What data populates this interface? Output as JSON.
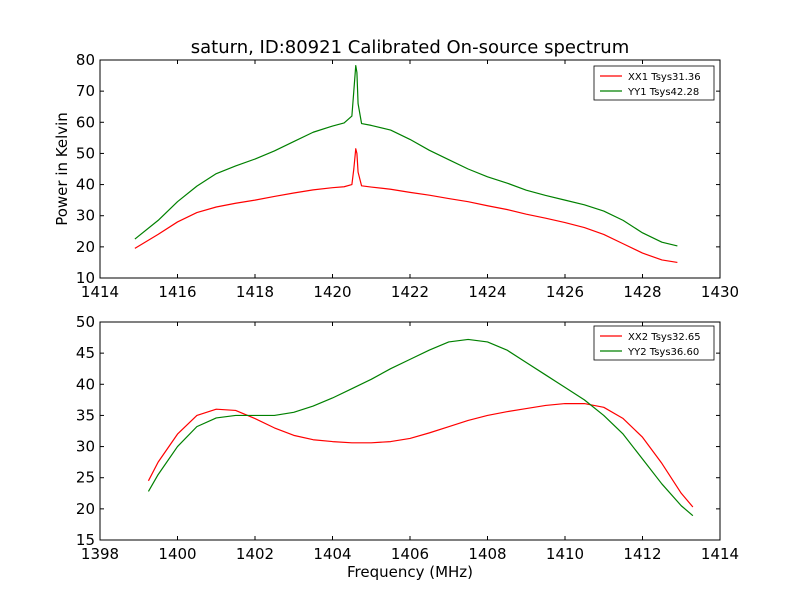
{
  "figure": {
    "title": "saturn, ID:80921 Calibrated On-source spectrum",
    "ylabel": "Power in Kelvin",
    "xlabel": "Frequency (MHz)"
  },
  "colors": {
    "red": "#ff0000",
    "green": "#008000"
  },
  "chart_data": [
    {
      "type": "line",
      "xlim": [
        1414,
        1430
      ],
      "ylim": [
        10,
        80
      ],
      "xticks": [
        "1414",
        "1416",
        "1418",
        "1420",
        "1422",
        "1424",
        "1426",
        "1428",
        "1430"
      ],
      "yticks": [
        "10",
        "20",
        "30",
        "40",
        "50",
        "60",
        "70",
        "80"
      ],
      "legend_position": "upper right",
      "series": [
        {
          "name": "XX1 Tsys31.36",
          "color": "#ff0000",
          "x": [
            1414.9,
            1415.5,
            1416.0,
            1416.5,
            1417.0,
            1417.5,
            1418.0,
            1418.5,
            1419.0,
            1419.5,
            1420.0,
            1420.3,
            1420.5,
            1420.55,
            1420.6,
            1420.63,
            1420.66,
            1420.75,
            1421.0,
            1421.5,
            1422.0,
            1422.5,
            1423.0,
            1423.5,
            1424.0,
            1424.5,
            1425.0,
            1425.5,
            1426.0,
            1426.5,
            1427.0,
            1427.5,
            1428.0,
            1428.5,
            1428.9
          ],
          "y": [
            19.5,
            24.0,
            28.0,
            31.0,
            32.8,
            34.0,
            35.0,
            36.2,
            37.3,
            38.3,
            39.0,
            39.3,
            40.0,
            45.0,
            51.5,
            50.0,
            44.0,
            39.6,
            39.2,
            38.5,
            37.5,
            36.6,
            35.5,
            34.5,
            33.2,
            32.0,
            30.5,
            29.2,
            27.8,
            26.2,
            24.0,
            21.0,
            18.0,
            15.8,
            15.0
          ]
        },
        {
          "name": "YY1 Tsys42.28",
          "color": "#008000",
          "x": [
            1414.9,
            1415.5,
            1416.0,
            1416.5,
            1417.0,
            1417.5,
            1418.0,
            1418.5,
            1419.0,
            1419.5,
            1420.0,
            1420.3,
            1420.5,
            1420.55,
            1420.6,
            1420.63,
            1420.66,
            1420.75,
            1421.0,
            1421.5,
            1422.0,
            1422.5,
            1423.0,
            1423.5,
            1424.0,
            1424.5,
            1425.0,
            1425.5,
            1426.0,
            1426.5,
            1427.0,
            1427.5,
            1428.0,
            1428.5,
            1428.9
          ],
          "y": [
            22.5,
            28.5,
            34.5,
            39.5,
            43.5,
            46.0,
            48.2,
            50.8,
            53.8,
            56.8,
            58.8,
            59.8,
            62.0,
            70.0,
            78.2,
            76.0,
            66.0,
            59.6,
            59.0,
            57.5,
            54.5,
            51.0,
            48.0,
            45.0,
            42.5,
            40.5,
            38.2,
            36.5,
            35.0,
            33.5,
            31.5,
            28.5,
            24.5,
            21.5,
            20.3
          ]
        }
      ]
    },
    {
      "type": "line",
      "xlim": [
        1398,
        1414
      ],
      "ylim": [
        15,
        50
      ],
      "xticks": [
        "1398",
        "1400",
        "1402",
        "1404",
        "1406",
        "1408",
        "1410",
        "1412",
        "1414"
      ],
      "yticks": [
        "15",
        "20",
        "25",
        "30",
        "35",
        "40",
        "45",
        "50"
      ],
      "legend_position": "upper right",
      "series": [
        {
          "name": "XX2 Tsys32.65",
          "color": "#ff0000",
          "x": [
            1399.25,
            1399.5,
            1400.0,
            1400.5,
            1401.0,
            1401.5,
            1402.0,
            1402.5,
            1403.0,
            1403.5,
            1404.0,
            1404.5,
            1405.0,
            1405.5,
            1406.0,
            1406.5,
            1407.0,
            1407.5,
            1408.0,
            1408.5,
            1409.0,
            1409.5,
            1410.0,
            1410.5,
            1411.0,
            1411.5,
            1412.0,
            1412.5,
            1413.0,
            1413.3
          ],
          "y": [
            24.5,
            27.5,
            32.0,
            35.0,
            36.0,
            35.8,
            34.5,
            33.0,
            31.8,
            31.1,
            30.8,
            30.6,
            30.6,
            30.8,
            31.3,
            32.2,
            33.2,
            34.2,
            35.0,
            35.6,
            36.1,
            36.6,
            36.9,
            36.9,
            36.3,
            34.5,
            31.5,
            27.3,
            22.5,
            20.3
          ]
        },
        {
          "name": "YY2 Tsys36.60",
          "color": "#008000",
          "x": [
            1399.25,
            1399.5,
            1400.0,
            1400.5,
            1401.0,
            1401.5,
            1402.0,
            1402.5,
            1403.0,
            1403.5,
            1404.0,
            1404.5,
            1405.0,
            1405.5,
            1406.0,
            1406.5,
            1407.0,
            1407.5,
            1408.0,
            1408.5,
            1409.0,
            1409.5,
            1410.0,
            1410.5,
            1411.0,
            1411.5,
            1412.0,
            1412.5,
            1413.0,
            1413.3
          ],
          "y": [
            22.8,
            25.5,
            30.0,
            33.2,
            34.6,
            35.0,
            35.0,
            35.0,
            35.5,
            36.5,
            37.8,
            39.3,
            40.8,
            42.5,
            44.0,
            45.5,
            46.8,
            47.2,
            46.8,
            45.5,
            43.5,
            41.5,
            39.5,
            37.5,
            35.0,
            32.0,
            28.0,
            24.0,
            20.5,
            18.9
          ]
        }
      ]
    }
  ]
}
